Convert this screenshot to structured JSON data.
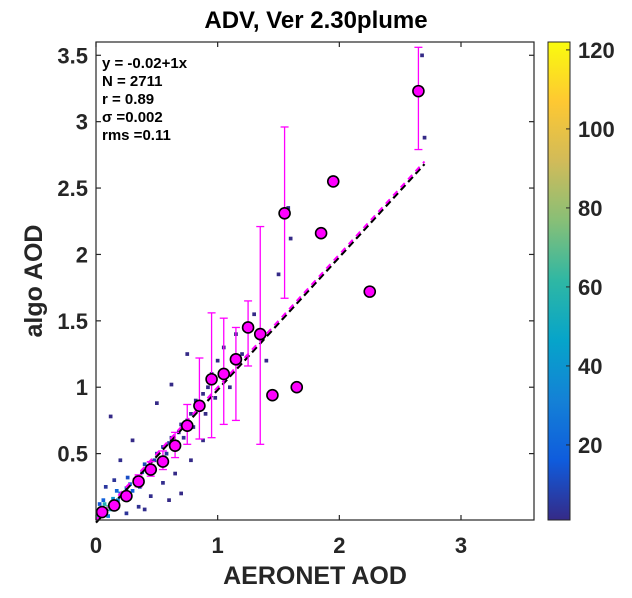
{
  "chart_data": {
    "type": "scatter",
    "title": "ADV, Ver 2.30plume",
    "xlabel": "AERONET AOD",
    "ylabel": "algo AOD",
    "xlim": [
      0,
      3.6
    ],
    "ylim": [
      0,
      3.6
    ],
    "xticks": [
      0,
      1,
      2,
      3
    ],
    "xtick_labels": [
      "0",
      "1",
      "2",
      "3"
    ],
    "yticks": [
      0.5,
      1,
      1.5,
      2,
      2.5,
      3,
      3.5
    ],
    "ytick_labels": [
      "0.5",
      "1",
      "1.5",
      "2",
      "2.5",
      "3",
      "3.5"
    ],
    "grid": false,
    "colormap": "parula",
    "colorbar": {
      "range": [
        1,
        122
      ],
      "ticks": [
        20,
        40,
        60,
        80,
        100,
        120
      ],
      "tick_labels": [
        "20",
        "40",
        "60",
        "80",
        "100",
        "120"
      ],
      "colors": [
        "#352a87",
        "#0f5cdd",
        "#1481d6",
        "#06a4ca",
        "#2eb7a4",
        "#87bf77",
        "#d1bb59",
        "#fec832",
        "#f9fb0e"
      ]
    },
    "stats": [
      "y  = -0.02+1x",
      "N = 2711",
      "r = 0.89",
      "σ =0.002",
      "rms =0.11"
    ],
    "fit_line": {
      "intercept": -0.02,
      "slope": 1,
      "x_range": [
        0,
        2.7
      ]
    },
    "one_to_one_line": {
      "x_range": [
        0,
        2.7
      ]
    },
    "binned_means": {
      "color": "#ff00ff",
      "x": [
        0.05,
        0.15,
        0.25,
        0.35,
        0.45,
        0.55,
        0.65,
        0.75,
        0.85,
        0.95,
        1.05,
        1.15,
        1.25,
        1.35,
        1.45,
        1.55,
        1.65,
        1.85,
        1.95,
        2.25,
        2.65
      ],
      "y": [
        0.06,
        0.11,
        0.18,
        0.29,
        0.38,
        0.44,
        0.56,
        0.71,
        0.86,
        1.06,
        1.1,
        1.21,
        1.45,
        1.4,
        0.94,
        2.31,
        1.0,
        2.16,
        2.55,
        1.72,
        3.23
      ],
      "ylow": [
        0.05,
        0.1,
        0.16,
        0.25,
        0.33,
        0.38,
        0.47,
        0.57,
        0.61,
        0.62,
        0.72,
        0.75,
        1.16,
        0.57,
        0.94,
        1.67,
        1.0,
        2.16,
        2.55,
        1.72,
        2.79
      ],
      "yhigh": [
        0.08,
        0.13,
        0.21,
        0.34,
        0.44,
        0.52,
        0.66,
        0.87,
        1.22,
        1.56,
        1.52,
        1.45,
        1.65,
        2.21,
        0.94,
        2.96,
        1.0,
        2.16,
        2.55,
        1.72,
        3.56
      ]
    },
    "density_points": [
      {
        "x": 0.04,
        "y": 0.05,
        "c": 122
      },
      {
        "x": 0.05,
        "y": 0.08,
        "c": 95
      },
      {
        "x": 0.08,
        "y": 0.06,
        "c": 100
      },
      {
        "x": 0.02,
        "y": 0.03,
        "c": 60
      },
      {
        "x": 0.1,
        "y": 0.1,
        "c": 70
      },
      {
        "x": 0.07,
        "y": 0.12,
        "c": 55
      },
      {
        "x": 0.12,
        "y": 0.08,
        "c": 50
      },
      {
        "x": 0.15,
        "y": 0.12,
        "c": 45
      },
      {
        "x": 0.14,
        "y": 0.16,
        "c": 40
      },
      {
        "x": 0.18,
        "y": 0.15,
        "c": 35
      },
      {
        "x": 0.1,
        "y": 0.03,
        "c": 30
      },
      {
        "x": 0.2,
        "y": 0.2,
        "c": 28
      },
      {
        "x": 0.22,
        "y": 0.17,
        "c": 25
      },
      {
        "x": 0.25,
        "y": 0.24,
        "c": 22
      },
      {
        "x": 0.17,
        "y": 0.22,
        "c": 20
      },
      {
        "x": 0.28,
        "y": 0.27,
        "c": 18
      },
      {
        "x": 0.3,
        "y": 0.22,
        "c": 16
      },
      {
        "x": 0.06,
        "y": 0.15,
        "c": 18
      },
      {
        "x": 0.03,
        "y": 0.12,
        "c": 15
      },
      {
        "x": 0.32,
        "y": 0.3,
        "c": 14
      },
      {
        "x": 0.35,
        "y": 0.33,
        "c": 12
      },
      {
        "x": 0.26,
        "y": 0.32,
        "c": 12
      },
      {
        "x": 0.38,
        "y": 0.36,
        "c": 11
      },
      {
        "x": 0.4,
        "y": 0.42,
        "c": 10
      },
      {
        "x": 0.42,
        "y": 0.37,
        "c": 9
      },
      {
        "x": 0.45,
        "y": 0.4,
        "c": 8
      },
      {
        "x": 0.48,
        "y": 0.45,
        "c": 8
      },
      {
        "x": 0.36,
        "y": 0.25,
        "c": 8
      },
      {
        "x": 0.5,
        "y": 0.5,
        "c": 7
      },
      {
        "x": 0.52,
        "y": 0.43,
        "c": 6
      },
      {
        "x": 0.55,
        "y": 0.55,
        "c": 6
      },
      {
        "x": 0.58,
        "y": 0.5,
        "c": 5
      },
      {
        "x": 0.6,
        "y": 0.58,
        "c": 5
      },
      {
        "x": 0.62,
        "y": 0.62,
        "c": 4
      },
      {
        "x": 0.65,
        "y": 0.55,
        "c": 4
      },
      {
        "x": 0.68,
        "y": 0.66,
        "c": 3
      },
      {
        "x": 0.7,
        "y": 0.72,
        "c": 3
      },
      {
        "x": 0.72,
        "y": 0.62,
        "c": 3
      },
      {
        "x": 0.75,
        "y": 0.75,
        "c": 2
      },
      {
        "x": 0.78,
        "y": 0.8,
        "c": 2
      },
      {
        "x": 0.8,
        "y": 0.7,
        "c": 2
      },
      {
        "x": 0.82,
        "y": 0.9,
        "c": 2
      },
      {
        "x": 0.85,
        "y": 0.84,
        "c": 2
      },
      {
        "x": 0.88,
        "y": 0.95,
        "c": 1
      },
      {
        "x": 0.9,
        "y": 0.8,
        "c": 1
      },
      {
        "x": 0.92,
        "y": 1.0,
        "c": 1
      },
      {
        "x": 0.95,
        "y": 1.1,
        "c": 1
      },
      {
        "x": 0.98,
        "y": 0.92,
        "c": 1
      },
      {
        "x": 1.0,
        "y": 1.2,
        "c": 1
      },
      {
        "x": 1.05,
        "y": 1.3,
        "c": 1
      },
      {
        "x": 1.1,
        "y": 1.0,
        "c": 1
      },
      {
        "x": 1.15,
        "y": 1.4,
        "c": 1
      },
      {
        "x": 1.2,
        "y": 1.25,
        "c": 1
      },
      {
        "x": 1.3,
        "y": 1.55,
        "c": 1
      },
      {
        "x": 1.4,
        "y": 1.2,
        "c": 1
      },
      {
        "x": 1.5,
        "y": 1.85,
        "c": 1
      },
      {
        "x": 1.6,
        "y": 2.12,
        "c": 1
      },
      {
        "x": 1.58,
        "y": 2.35,
        "c": 1
      },
      {
        "x": 1.95,
        "y": 2.55,
        "c": 1
      },
      {
        "x": 0.75,
        "y": 1.25,
        "c": 1
      },
      {
        "x": 0.62,
        "y": 1.02,
        "c": 1
      },
      {
        "x": 0.5,
        "y": 0.88,
        "c": 1
      },
      {
        "x": 0.12,
        "y": 0.78,
        "c": 1
      },
      {
        "x": 0.2,
        "y": 0.45,
        "c": 2
      },
      {
        "x": 0.3,
        "y": 0.6,
        "c": 1
      },
      {
        "x": 0.45,
        "y": 0.18,
        "c": 2
      },
      {
        "x": 0.55,
        "y": 0.28,
        "c": 2
      },
      {
        "x": 0.65,
        "y": 0.35,
        "c": 1
      },
      {
        "x": 0.78,
        "y": 0.45,
        "c": 1
      },
      {
        "x": 0.88,
        "y": 0.6,
        "c": 1
      },
      {
        "x": 0.6,
        "y": 0.15,
        "c": 1
      },
      {
        "x": 0.7,
        "y": 0.2,
        "c": 1
      },
      {
        "x": 0.35,
        "y": 0.1,
        "c": 3
      },
      {
        "x": 0.25,
        "y": 0.05,
        "c": 4
      },
      {
        "x": 0.4,
        "y": 0.08,
        "c": 2
      },
      {
        "x": 0.15,
        "y": 0.3,
        "c": 4
      },
      {
        "x": 0.08,
        "y": 0.25,
        "c": 5
      },
      {
        "x": 2.7,
        "y": 2.88,
        "c": 1
      },
      {
        "x": 2.68,
        "y": 3.5,
        "c": 1
      }
    ]
  }
}
